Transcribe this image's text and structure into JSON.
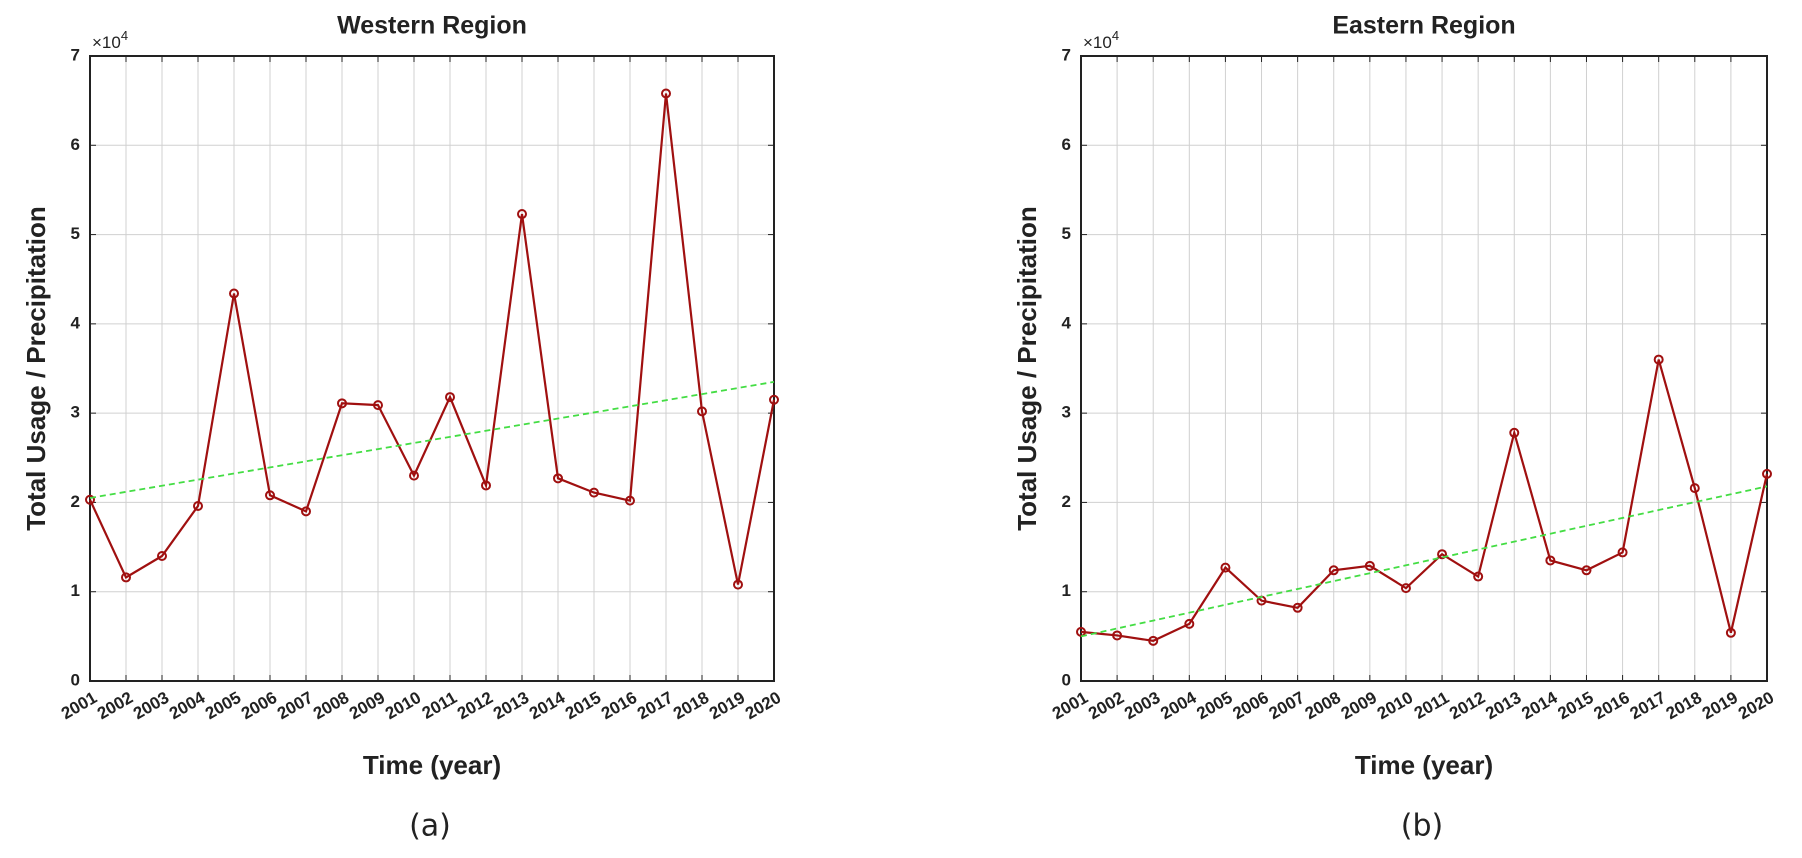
{
  "chart_data": [
    {
      "type": "line",
      "title": "Western Region",
      "x_label": "Time (year)",
      "y_label": "Total Usage / Precipitation",
      "y_multiplier": {
        "base": "×10",
        "exponent": "4"
      },
      "caption": "(a)",
      "x": [
        2001,
        2002,
        2003,
        2004,
        2005,
        2006,
        2007,
        2008,
        2009,
        2010,
        2011,
        2012,
        2013,
        2014,
        2015,
        2016,
        2017,
        2018,
        2019,
        2020
      ],
      "xlim": [
        2001,
        2020
      ],
      "xticks": [
        2001,
        2002,
        2003,
        2004,
        2005,
        2006,
        2007,
        2008,
        2009,
        2010,
        2011,
        2012,
        2013,
        2014,
        2015,
        2016,
        2017,
        2018,
        2019,
        2020
      ],
      "ylim": [
        0,
        70000
      ],
      "yticks": [
        0,
        {
          "value": 10000,
          "label": "1"
        },
        {
          "value": 20000,
          "label": "2"
        },
        {
          "value": 30000,
          "label": "3"
        },
        {
          "value": 40000,
          "label": "4"
        },
        {
          "value": 50000,
          "label": "5"
        },
        {
          "value": 60000,
          "label": "6"
        },
        {
          "value": 70000,
          "label": "7"
        }
      ],
      "grid": true,
      "series": [
        {
          "color": "#a01010",
          "style": "solid",
          "marker": "circle",
          "values": [
            20300,
            11600,
            14000,
            19600,
            43400,
            20800,
            19000,
            31100,
            30900,
            23000,
            31800,
            21900,
            52300,
            22700,
            21100,
            20200,
            65800,
            30200,
            10800,
            31500
          ]
        },
        {
          "color": "#44dd44",
          "style": "dashed",
          "marker": "none",
          "values": [
            20500,
            21184,
            21868,
            22553,
            23237,
            23921,
            24605,
            25289,
            25974,
            26658,
            27342,
            28026,
            28711,
            29395,
            30079,
            30763,
            31447,
            32132,
            32816,
            33500
          ]
        }
      ]
    },
    {
      "type": "line",
      "title": "Eastern Region",
      "x_label": "Time (year)",
      "y_label": "Total Usage / Precipitation",
      "y_multiplier": {
        "base": "×10",
        "exponent": "4"
      },
      "caption": "(b)",
      "x": [
        2001,
        2002,
        2003,
        2004,
        2005,
        2006,
        2007,
        2008,
        2009,
        2010,
        2011,
        2012,
        2013,
        2014,
        2015,
        2016,
        2017,
        2018,
        2019,
        2020
      ],
      "xlim": [
        2001,
        2020
      ],
      "xticks": [
        2001,
        2002,
        2003,
        2004,
        2005,
        2006,
        2007,
        2008,
        2009,
        2010,
        2011,
        2012,
        2013,
        2014,
        2015,
        2016,
        2017,
        2018,
        2019,
        2020
      ],
      "ylim": [
        0,
        70000
      ],
      "yticks": [
        0,
        {
          "value": 10000,
          "label": "1"
        },
        {
          "value": 20000,
          "label": "2"
        },
        {
          "value": 30000,
          "label": "3"
        },
        {
          "value": 40000,
          "label": "4"
        },
        {
          "value": 50000,
          "label": "5"
        },
        {
          "value": 60000,
          "label": "6"
        },
        {
          "value": 70000,
          "label": "7"
        }
      ],
      "grid": true,
      "series": [
        {
          "color": "#a01010",
          "style": "solid",
          "marker": "circle",
          "values": [
            5500,
            5100,
            4500,
            6400,
            12700,
            9000,
            8200,
            12400,
            12900,
            10400,
            14200,
            11700,
            27800,
            13500,
            12400,
            14400,
            36000,
            21600,
            5400,
            23200
          ]
        },
        {
          "color": "#44dd44",
          "style": "dashed",
          "marker": "none",
          "values": [
            5000,
            5884,
            6768,
            7653,
            8537,
            9421,
            10305,
            11189,
            12074,
            12958,
            13842,
            14726,
            15611,
            16495,
            17379,
            18263,
            19147,
            20032,
            20916,
            21800
          ]
        }
      ]
    }
  ]
}
